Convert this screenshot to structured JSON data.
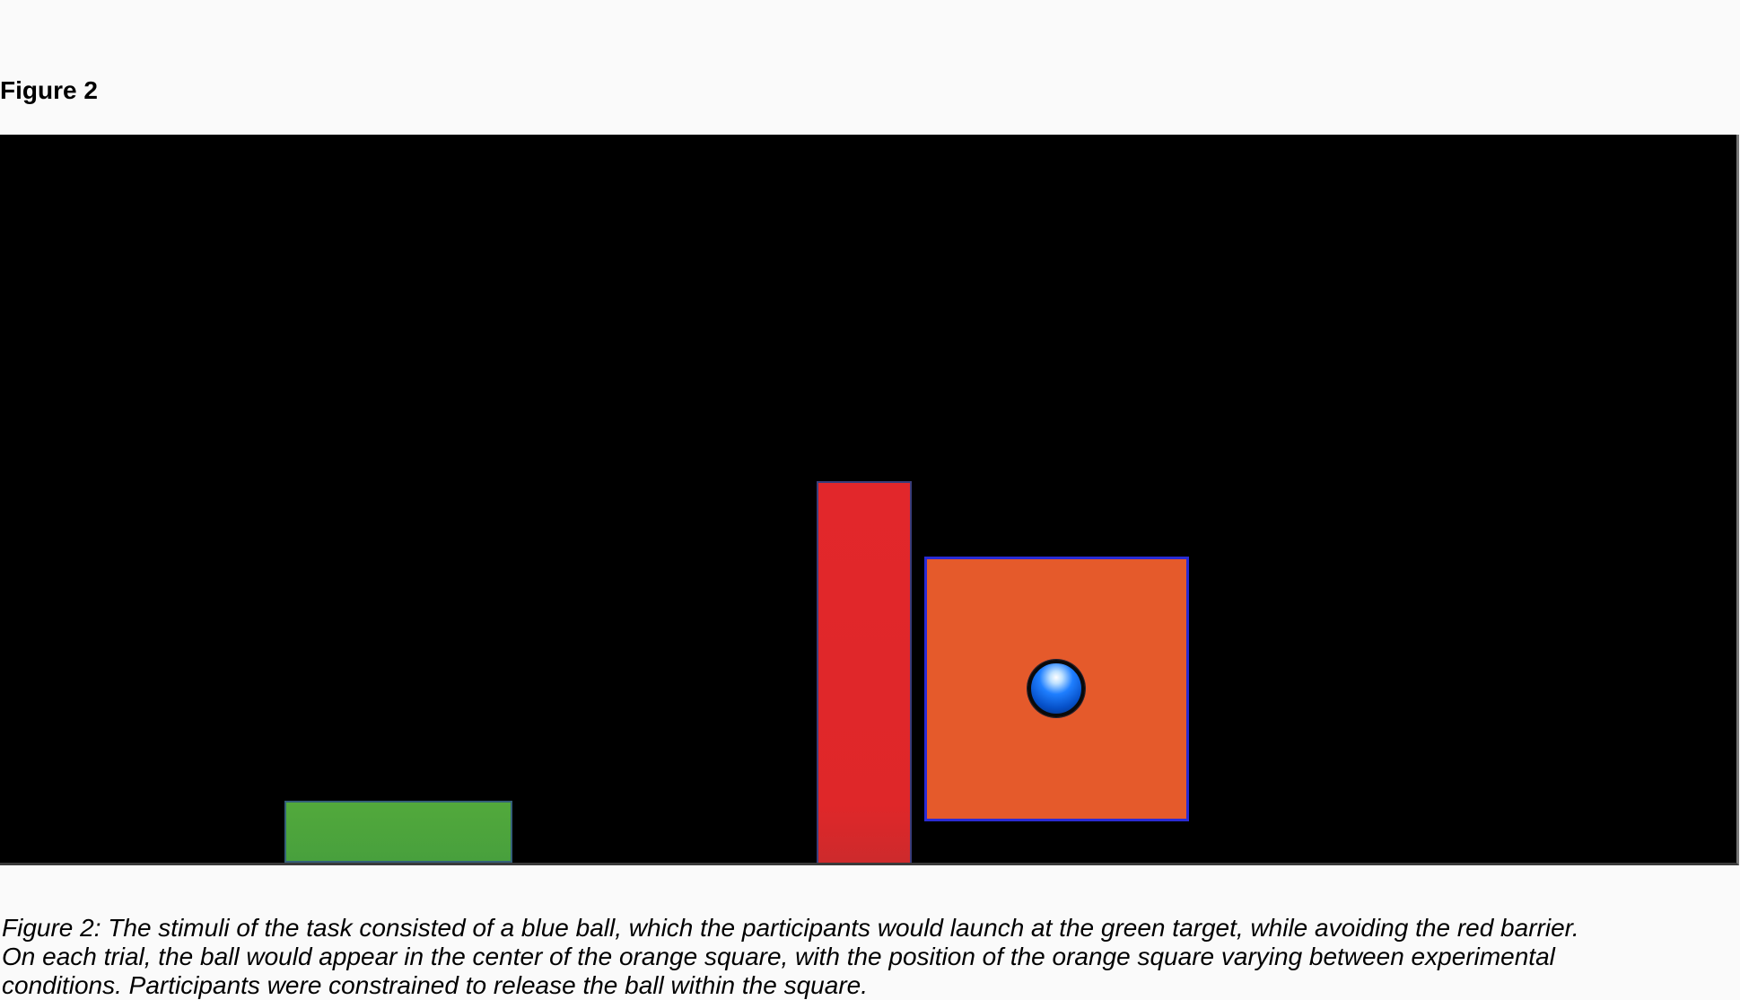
{
  "figure": {
    "title": "Figure 2",
    "caption_lines": [
      "Figure 2: The stimuli of the task consisted of a blue ball, which the participants would launch at the green target, while avoiding the red barrier.",
      "On each trial, the ball would appear in the center of the orange square, with the position of the orange square varying between experimental",
      "conditions. Participants were constrained to release the ball within the square."
    ]
  },
  "colors": {
    "background": "#000000",
    "target": "#4aa33d",
    "barrier": "#e0262a",
    "launch_square": "#e55a2b",
    "ball": "#1f7fff"
  }
}
